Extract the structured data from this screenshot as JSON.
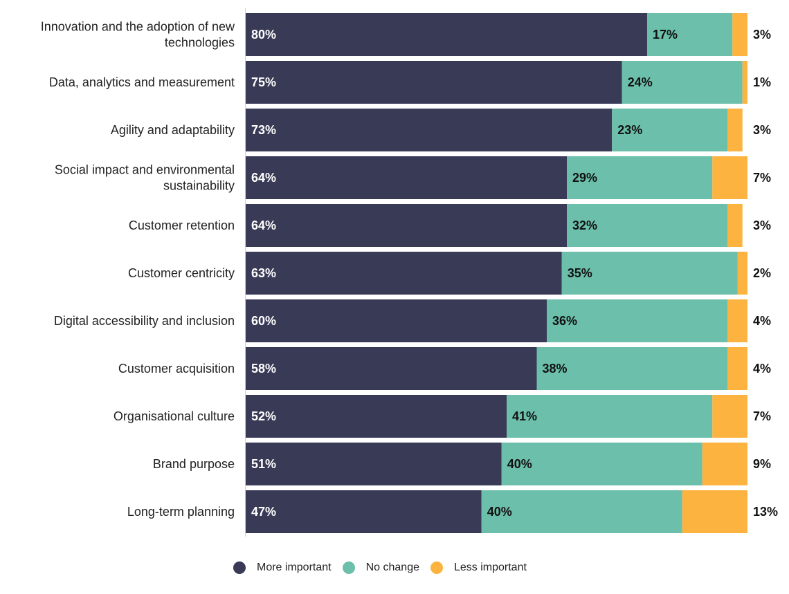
{
  "chart_data": {
    "type": "bar",
    "orientation": "horizontal",
    "stacked": true,
    "title": "",
    "xlabel": "",
    "ylabel": "",
    "xlim": [
      0,
      100
    ],
    "grid": false,
    "legend_position": "bottom-center",
    "categories": [
      [
        "Innovation and the adoption of new",
        "technologies"
      ],
      [
        "Data, analytics and measurement"
      ],
      [
        "Agility and adaptability"
      ],
      [
        "Social impact and environmental",
        "sustainability"
      ],
      [
        "Customer retention"
      ],
      [
        "Customer centricity"
      ],
      [
        "Digital accessibility and inclusion"
      ],
      [
        "Customer acquisition"
      ],
      [
        "Organisational culture"
      ],
      [
        "Brand purpose"
      ],
      [
        "Long-term planning"
      ]
    ],
    "series": [
      {
        "name": "More important",
        "color": "#383a56",
        "label_color": "#ffffff",
        "values": [
          80,
          75,
          73,
          64,
          64,
          63,
          60,
          58,
          52,
          51,
          47
        ]
      },
      {
        "name": "No change",
        "color": "#6cbfaa",
        "label_color": "#111111",
        "values": [
          17,
          24,
          23,
          29,
          32,
          35,
          36,
          38,
          41,
          40,
          40
        ]
      },
      {
        "name": "Less important",
        "color": "#fdb33f",
        "label_color": "#111111",
        "values": [
          3,
          1,
          3,
          7,
          3,
          2,
          4,
          4,
          7,
          9,
          13
        ]
      }
    ],
    "value_suffix": "%"
  },
  "legend": {
    "items": [
      {
        "label": "More important",
        "color": "#383a56"
      },
      {
        "label": "No change",
        "color": "#6cbfaa"
      },
      {
        "label": "Less important",
        "color": "#fdb33f"
      }
    ]
  }
}
